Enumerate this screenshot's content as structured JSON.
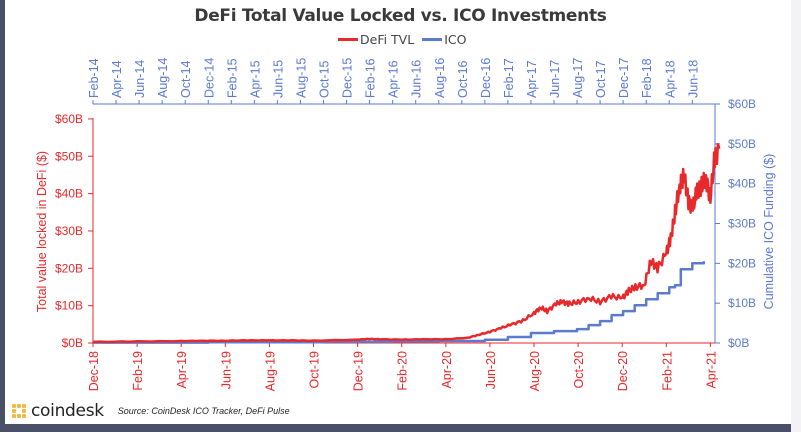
{
  "chart_data": {
    "type": "line",
    "title": "DeFi Total Value Locked vs. ICO Investments",
    "legend": {
      "position": "top-center",
      "entries": [
        {
          "name": "DeFi TVL",
          "color": "#e8292b"
        },
        {
          "name": "ICO",
          "color": "#5b7bcf"
        }
      ]
    },
    "left_axis": {
      "label": "Total value locked in DeFi ($)",
      "color": "#e8292b",
      "ticks": [
        "$0B",
        "$10B",
        "$20B",
        "$30B",
        "$40B",
        "$50B",
        "$60B"
      ],
      "tick_values": [
        0,
        10,
        20,
        30,
        40,
        50,
        60
      ],
      "range": [
        0,
        64
      ]
    },
    "right_axis": {
      "label": "Cumulative ICO Funding ($)",
      "color": "#5b7bcf",
      "ticks": [
        "$0B",
        "$10B",
        "$20B",
        "$30B",
        "$40B",
        "$50B",
        "$60B"
      ],
      "tick_values": [
        0,
        10,
        20,
        30,
        40,
        50,
        60
      ],
      "range": [
        0,
        60
      ]
    },
    "bottom_axis": {
      "color": "#e8292b",
      "series": "DeFi TVL",
      "ticks": [
        "Dec-18",
        "Feb-19",
        "Apr-19",
        "Jun-19",
        "Aug-19",
        "Oct-19",
        "Dec-19",
        "Feb-20",
        "Apr-20",
        "Jun-20",
        "Aug-20",
        "Oct-20",
        "Dec-20",
        "Feb-21",
        "Apr-21"
      ]
    },
    "top_axis": {
      "color": "#5b7bcf",
      "series": "ICO",
      "ticks": [
        "Feb-14",
        "Apr-14",
        "Jun-14",
        "Aug-14",
        "Oct-14",
        "Dec-14",
        "Feb-15",
        "Apr-15",
        "Jun-15",
        "Aug-15",
        "Oct-15",
        "Dec-15",
        "Feb-16",
        "Apr-16",
        "Jun-16",
        "Aug-16",
        "Oct-16",
        "Dec-16",
        "Feb-17",
        "Apr-17",
        "Jun-17",
        "Aug-17",
        "Oct-17",
        "Dec-17",
        "Feb-18",
        "Apr-18",
        "Jun-18"
      ]
    },
    "series": [
      {
        "name": "DeFi TVL",
        "axis": "left",
        "x_unit": "months since Dec-18",
        "x": [
          0,
          2,
          4,
          5,
          6,
          7,
          8,
          9,
          10,
          12,
          12.5,
          13,
          14,
          15,
          16,
          17,
          17.5,
          18,
          18.5,
          19,
          19.5,
          20,
          20.3,
          20.6,
          21,
          21.3,
          21.6,
          22,
          22.5,
          23,
          23.5,
          24,
          24.3,
          24.6,
          25,
          25.3,
          25.6,
          26,
          26.2,
          26.4,
          26.6,
          26.8,
          27,
          27.2,
          27.4,
          27.6,
          27.8,
          28,
          28.2,
          28.4
        ],
        "values": [
          0.3,
          0.4,
          0.5,
          0.6,
          0.6,
          0.7,
          0.7,
          0.7,
          0.6,
          0.9,
          1.1,
          1.0,
          0.9,
          1.0,
          1.0,
          1.4,
          2.2,
          3.0,
          4.0,
          5.0,
          6.0,
          8.0,
          9.5,
          8.5,
          10.5,
          11.0,
          10.5,
          11.0,
          12.0,
          11.0,
          12.5,
          12.0,
          14.0,
          15.0,
          15.5,
          22.0,
          20.0,
          24.0,
          28.0,
          35.0,
          42.0,
          45.0,
          38.0,
          36.0,
          41.0,
          42.0,
          44.0,
          39.0,
          50.0,
          52.0
        ]
      },
      {
        "name": "ICO",
        "axis": "right",
        "x_unit": "months since Feb-14",
        "x": [
          0,
          10,
          20,
          26,
          30,
          34,
          36,
          38,
          40,
          42,
          43,
          44,
          45,
          46,
          47,
          48,
          49,
          50,
          50.5,
          51,
          52,
          53
        ],
        "values": [
          0.1,
          0.2,
          0.3,
          0.4,
          0.5,
          0.8,
          1.5,
          2.5,
          3.0,
          3.5,
          4.5,
          5.5,
          7.0,
          8.0,
          9.5,
          11.0,
          12.5,
          14.0,
          14.5,
          18.5,
          20.0,
          20.5
        ]
      }
    ]
  },
  "footer": {
    "brand": "coindesk",
    "source": "Source: CoinDesk ICO Tracker, DeFi Pulse"
  }
}
